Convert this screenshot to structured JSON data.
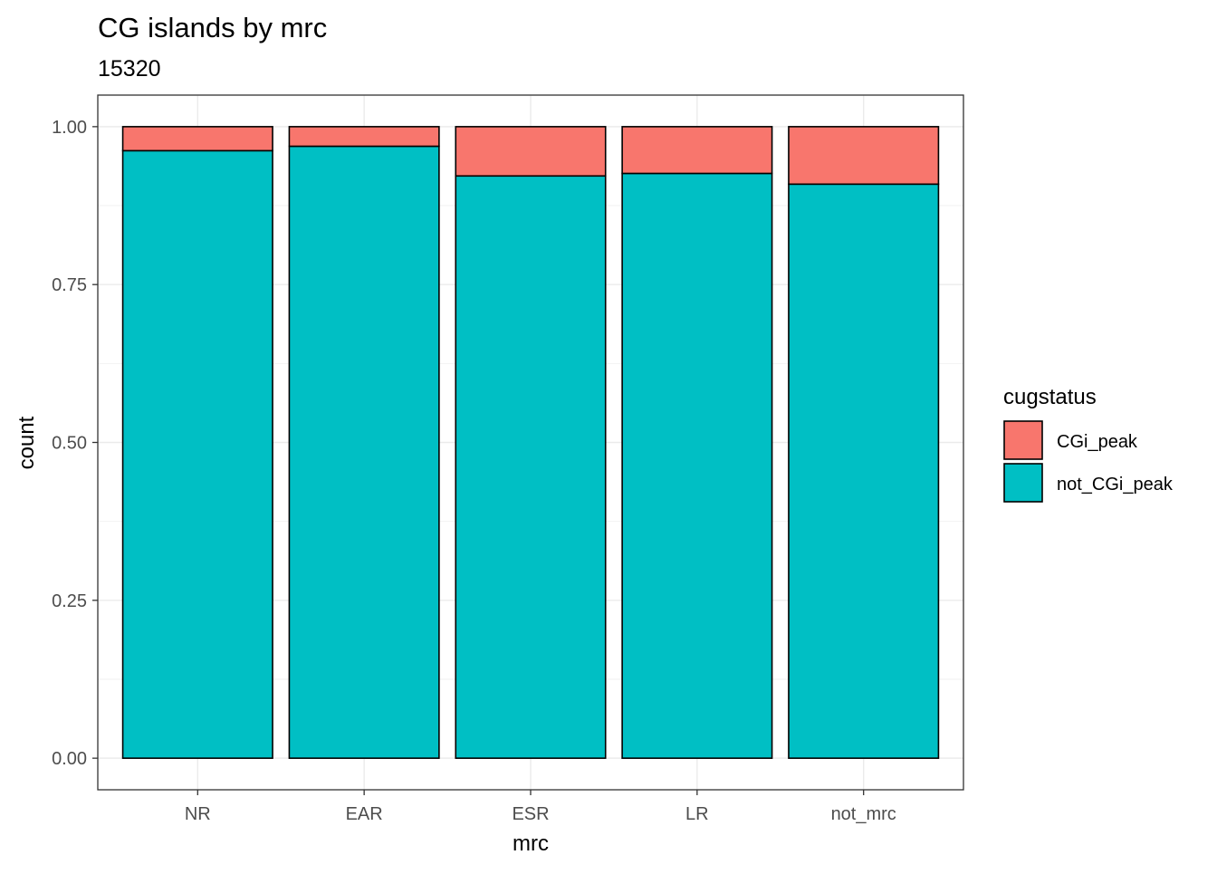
{
  "chart_data": {
    "type": "bar",
    "stacked": true,
    "position": "fill",
    "title": "CG islands by mrc",
    "subtitle": "15320",
    "xlabel": "mrc",
    "ylabel": "count",
    "categories": [
      "NR",
      "EAR",
      "ESR",
      "LR",
      "not_mrc"
    ],
    "series": [
      {
        "name": "not_CGi_peak",
        "color": "#00BFC4",
        "values": [
          0.962,
          0.969,
          0.922,
          0.926,
          0.909
        ]
      },
      {
        "name": "CGi_peak",
        "color": "#F8766D",
        "values": [
          0.038,
          0.031,
          0.078,
          0.074,
          0.091
        ]
      }
    ],
    "ylim": [
      -0.05,
      1.05
    ],
    "yticks": [
      0.0,
      0.25,
      0.5,
      0.75,
      1.0
    ],
    "ytick_labels": [
      "0.00",
      "0.25",
      "0.50",
      "0.75",
      "1.00"
    ],
    "grid": true,
    "legend": {
      "title": "cugstatus",
      "placement": "right",
      "entries": [
        {
          "label": "CGi_peak",
          "color": "#F8766D"
        },
        {
          "label": "not_CGi_peak",
          "color": "#00BFC4"
        }
      ]
    }
  }
}
